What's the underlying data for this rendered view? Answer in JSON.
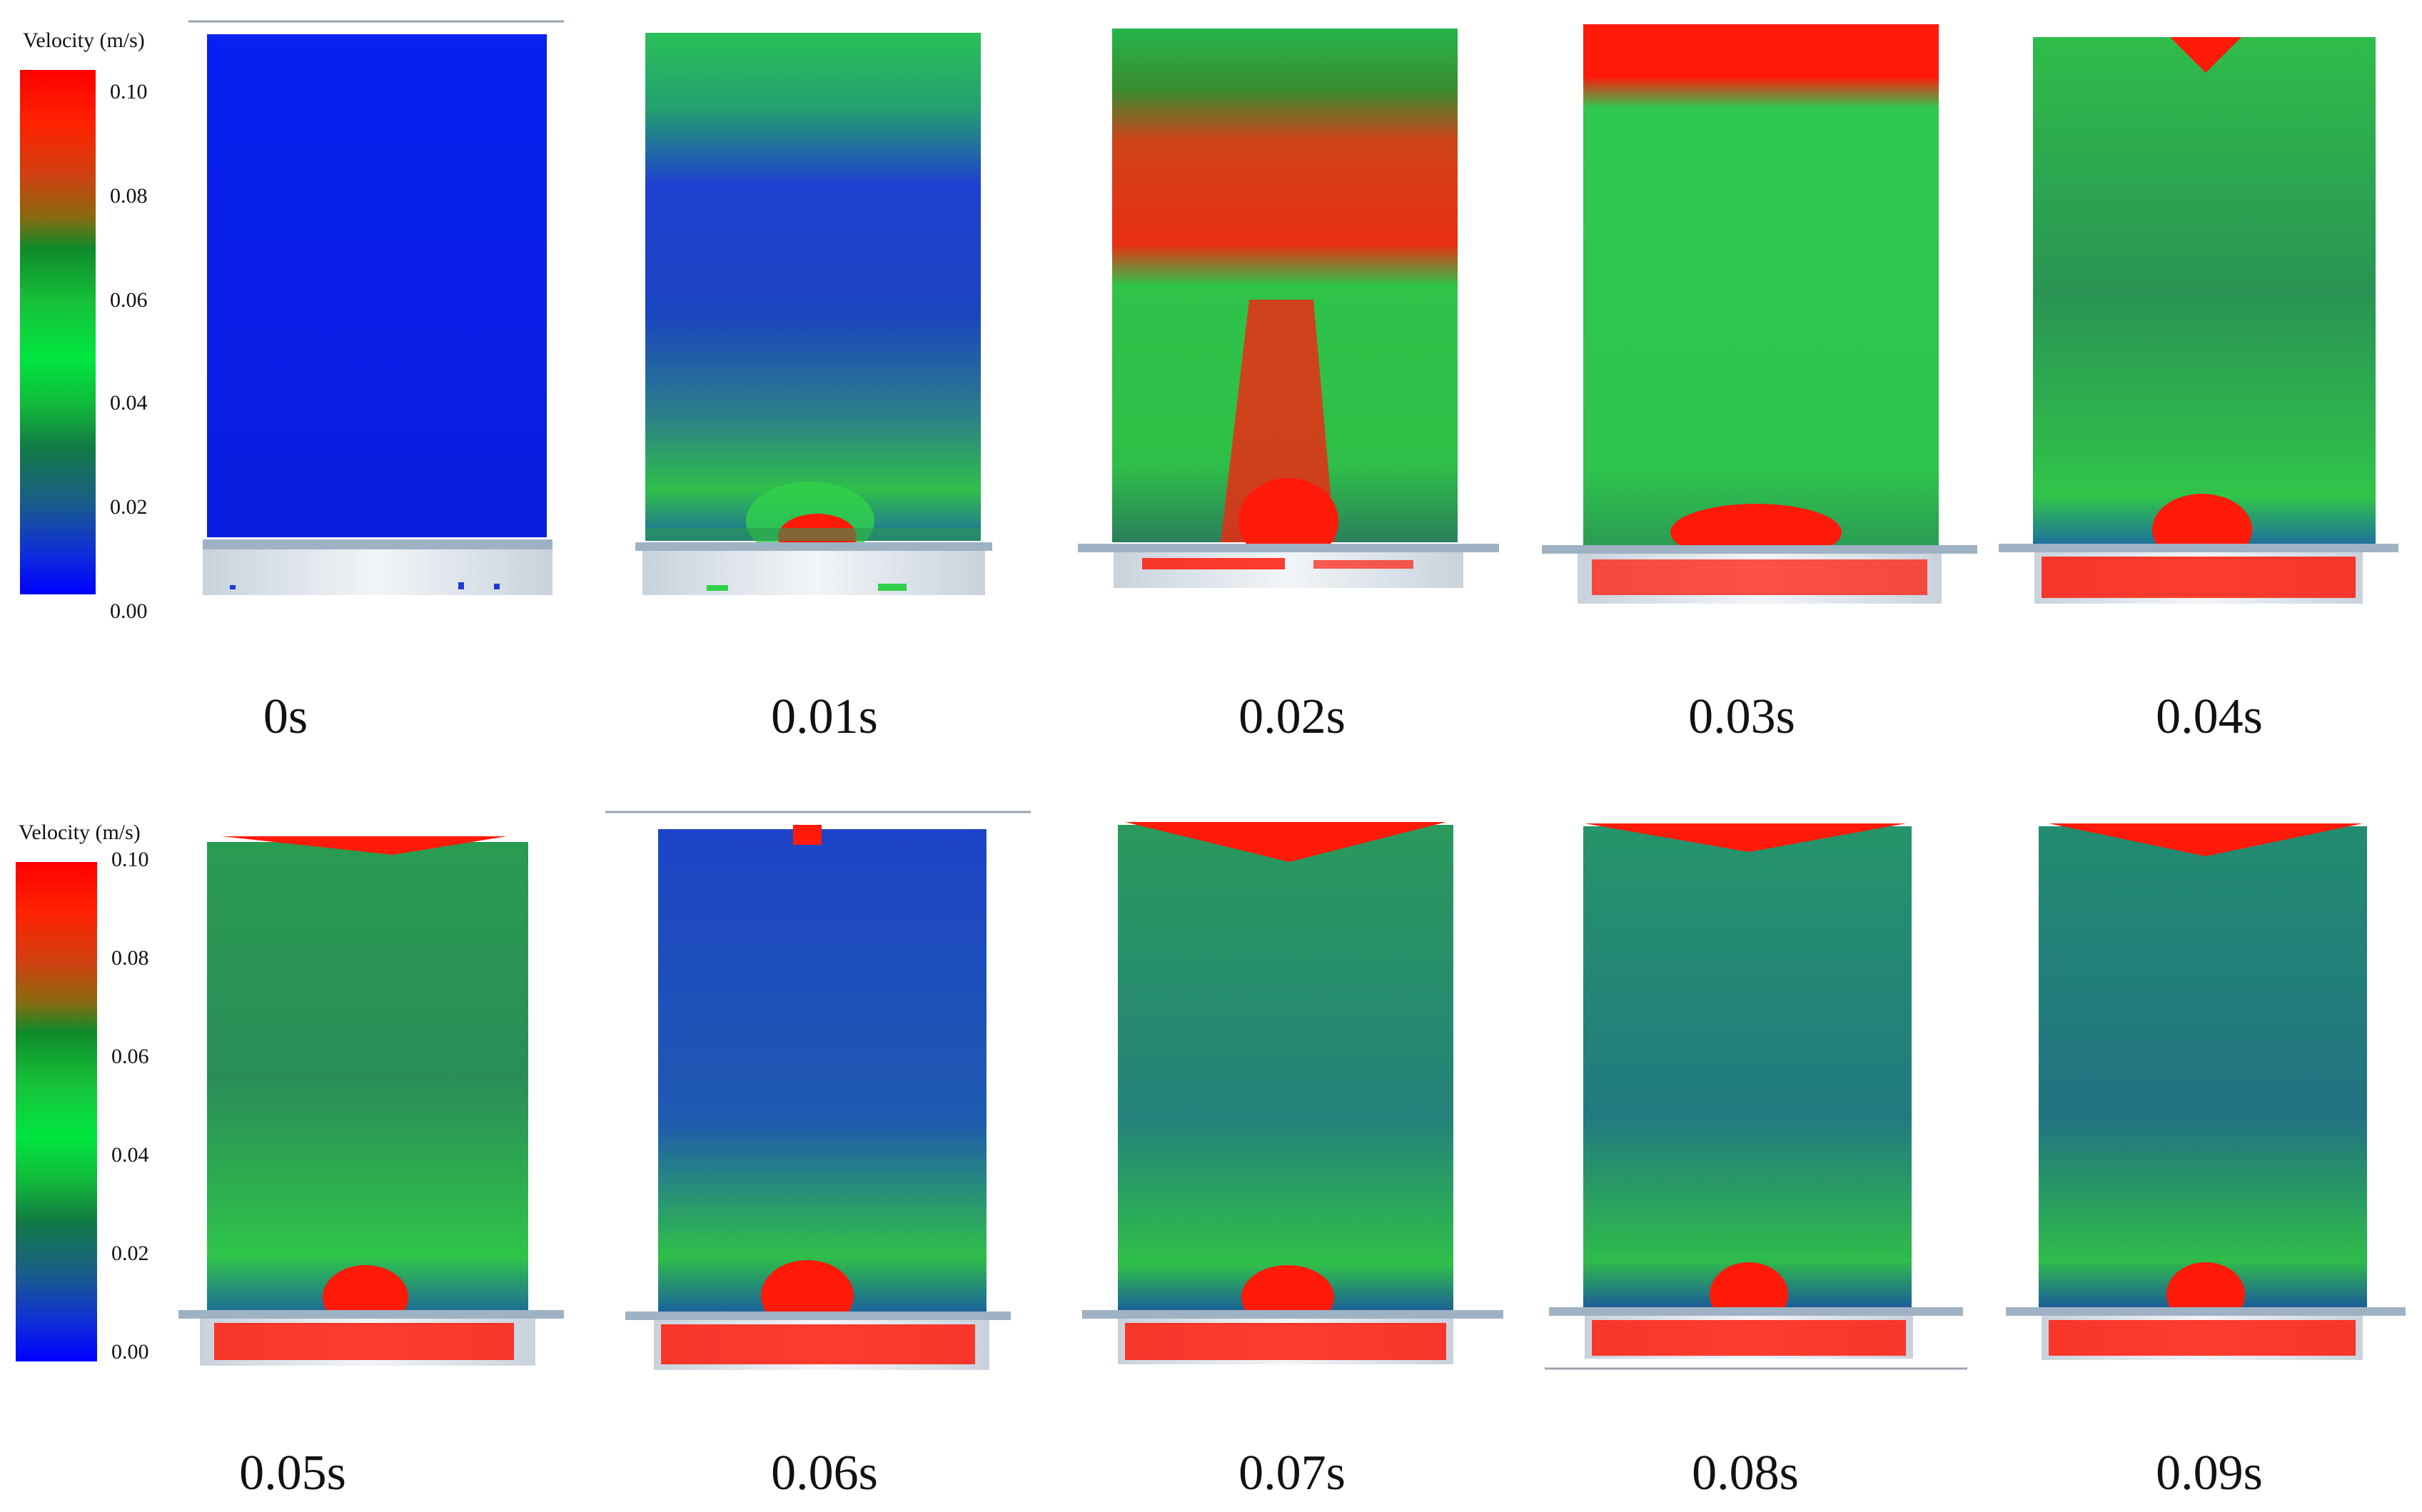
{
  "legend": {
    "title": "Velocity (m/s)",
    "ticks": [
      "0.10",
      "0.08",
      "0.06",
      "0.04",
      "0.02",
      "0.00"
    ]
  },
  "colors": {
    "low": "#0000ff",
    "mid": "#1ee04a",
    "high": "#ff0000",
    "frame": "#dde3ea"
  },
  "panels": [
    {
      "time": "0s"
    },
    {
      "time": "0.01s"
    },
    {
      "time": "0.02s"
    },
    {
      "time": "0.03s"
    },
    {
      "time": "0.04s"
    },
    {
      "time": "0.05s"
    },
    {
      "time": "0.06s"
    },
    {
      "time": "0.07s"
    },
    {
      "time": "0.08s"
    },
    {
      "time": "0.09s"
    }
  ]
}
